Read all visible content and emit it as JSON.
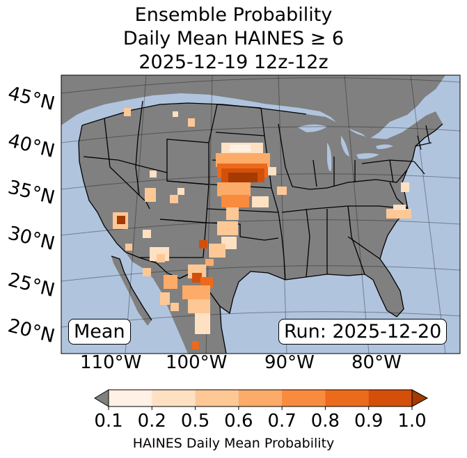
{
  "title": {
    "line1": "Ensemble Probability",
    "line2": "Daily Mean HAINES ≥ 6",
    "line3": "2025-12-19 12z-12z"
  },
  "lat_labels": [
    "45°N",
    "40°N",
    "35°N",
    "30°N",
    "25°N",
    "20°N"
  ],
  "lon_labels": [
    "110°W",
    "100°W",
    "90°W",
    "80°W"
  ],
  "stat_label": "Mean",
  "run_label": "Run: 2025-12-20",
  "colorbar": {
    "ticks": [
      "0.1",
      "0.2",
      "0.5",
      "0.6",
      "0.7",
      "0.8",
      "0.9",
      "1.0"
    ],
    "colors": [
      "#fff1e5",
      "#fee1c3",
      "#fdc896",
      "#fcab69",
      "#f98b3f",
      "#ec6a1c",
      "#d44f0a",
      "#a63a03"
    ],
    "under_color": "#808080",
    "label": "HAINES Daily Mean Probability"
  },
  "colors": {
    "ocean": "#b0c4de",
    "land": "#808080",
    "border": "#000000"
  }
}
